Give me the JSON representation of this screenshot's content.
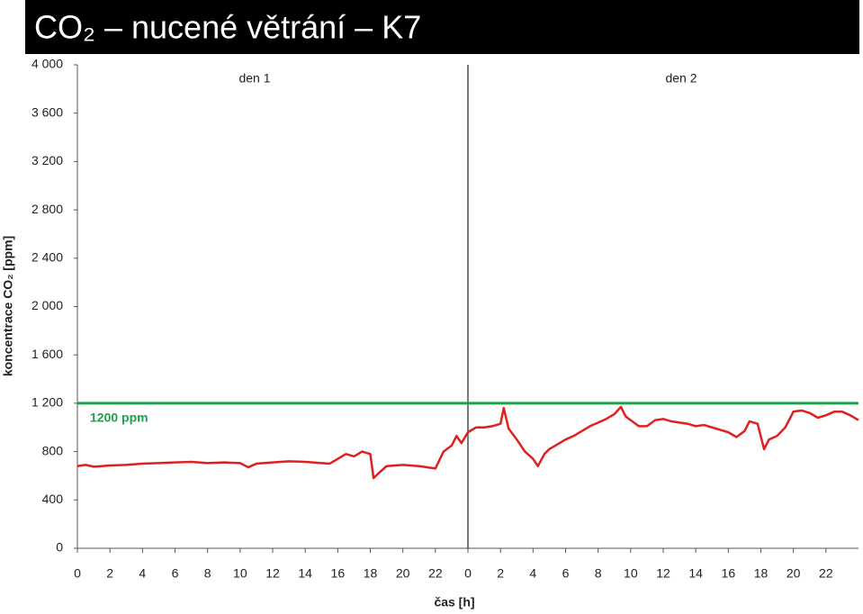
{
  "chart_data": {
    "type": "line",
    "title": "CO₂ – nucené větrání – K7",
    "x_label": "čas [h]",
    "y_label": "koncentrace CO₂ [ppm]",
    "annotations": [
      "den 1",
      "den 2",
      "1200 ppm"
    ],
    "threshold": {
      "value": 1200,
      "color": "#1aa34a"
    },
    "day_divider": 24,
    "xlim": [
      0,
      48
    ],
    "xticks": [
      0,
      2,
      4,
      6,
      8,
      10,
      12,
      14,
      16,
      18,
      20,
      22,
      {
        "value": 24,
        "label": "0"
      },
      {
        "value": 26,
        "label": "2"
      },
      {
        "value": 28,
        "label": "4"
      },
      {
        "value": 30,
        "label": "6"
      },
      {
        "value": 32,
        "label": "8"
      },
      {
        "value": 34,
        "label": "10"
      },
      {
        "value": 36,
        "label": "12"
      },
      {
        "value": 38,
        "label": "14"
      },
      {
        "value": 40,
        "label": "16"
      },
      {
        "value": 42,
        "label": "18"
      },
      {
        "value": 44,
        "label": "20"
      },
      {
        "value": 46,
        "label": "22"
      }
    ],
    "ylim": [
      0,
      4000
    ],
    "yticks": [
      0,
      400,
      800,
      {
        "value": 1200,
        "label": "1 200"
      },
      {
        "value": 1600,
        "label": "1 600"
      },
      {
        "value": 2000,
        "label": "2 000"
      },
      {
        "value": 2400,
        "label": "2 400"
      },
      {
        "value": 2800,
        "label": "2 800"
      },
      {
        "value": 3200,
        "label": "3 200"
      },
      {
        "value": 3600,
        "label": "3 600"
      },
      {
        "value": 4000,
        "label": "4 000"
      }
    ],
    "series": [
      {
        "name": "CO₂",
        "color": "#e02020",
        "x": [
          0,
          0.5,
          1,
          1.5,
          2,
          3,
          4,
          5,
          6,
          7,
          8,
          9,
          10,
          10.5,
          11,
          12,
          13,
          14,
          15,
          15.5,
          16,
          16.5,
          17,
          17.5,
          18,
          18.2,
          18.5,
          19,
          20,
          21,
          22,
          22.5,
          23,
          23.3,
          23.6,
          24,
          24.5,
          25,
          25.5,
          26,
          26.2,
          26.5,
          27,
          27.5,
          28,
          28.3,
          28.7,
          29,
          29.5,
          30,
          30.5,
          31,
          31.5,
          32,
          32.5,
          33,
          33.4,
          33.7,
          34,
          34.5,
          35,
          35.5,
          36,
          36.5,
          37,
          37.5,
          38,
          38.5,
          39,
          39.5,
          40,
          40.5,
          41,
          41.3,
          41.8,
          42.2,
          42.5,
          43,
          43.5,
          44,
          44.5,
          45,
          45.5,
          46,
          46.5,
          47,
          47.5,
          48
        ],
        "values": [
          680,
          690,
          675,
          680,
          685,
          690,
          700,
          705,
          710,
          715,
          705,
          710,
          705,
          670,
          700,
          710,
          720,
          715,
          705,
          700,
          740,
          780,
          760,
          800,
          780,
          580,
          620,
          680,
          690,
          680,
          660,
          800,
          850,
          930,
          870,
          960,
          1000,
          1000,
          1010,
          1030,
          1160,
          990,
          900,
          800,
          740,
          680,
          780,
          820,
          860,
          900,
          930,
          970,
          1010,
          1040,
          1070,
          1110,
          1170,
          1090,
          1060,
          1010,
          1010,
          1060,
          1070,
          1050,
          1040,
          1030,
          1010,
          1020,
          1000,
          980,
          960,
          920,
          970,
          1050,
          1030,
          820,
          900,
          930,
          1000,
          1130,
          1140,
          1120,
          1080,
          1100,
          1130,
          1130,
          1100,
          1060
        ]
      }
    ]
  }
}
